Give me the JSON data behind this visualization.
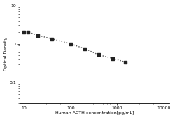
{
  "x_data": [
    10,
    12,
    20,
    40,
    100,
    200,
    400,
    800,
    1500
  ],
  "y_data": [
    2.05,
    2.05,
    1.65,
    1.35,
    1.0,
    0.75,
    0.52,
    0.42,
    0.34
  ],
  "xlabel": "Human ACTH concentration[pg/mL]",
  "ylabel": "Optical Density",
  "xlim": [
    8,
    13000
  ],
  "ylim": [
    0.03,
    10
  ],
  "xticks": [
    10,
    100,
    1000,
    10000
  ],
  "xtick_labels": [
    "10",
    "100",
    "1000",
    "10000"
  ],
  "yticks": [
    0.1,
    1,
    10
  ],
  "ytick_labels": [
    "0.1",
    "1",
    "10"
  ],
  "line_color": "#555555",
  "marker_color": "#222222",
  "background_color": "#ffffff"
}
